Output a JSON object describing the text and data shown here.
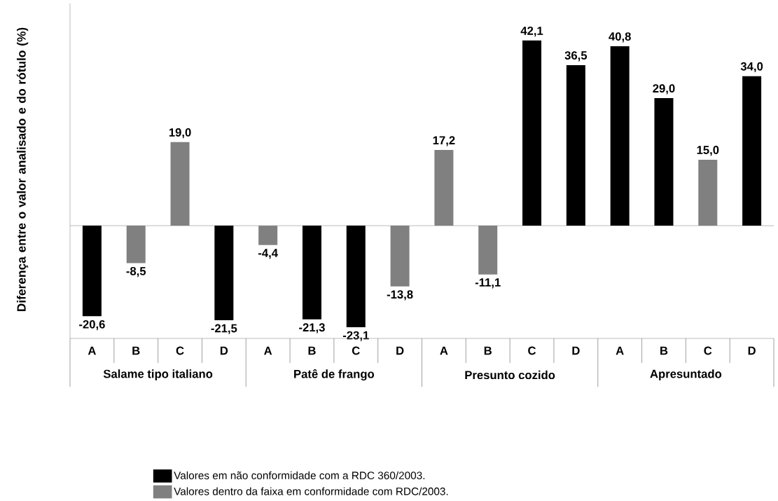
{
  "chart_data": {
    "type": "bar",
    "ylabel": "Diferença entre o valor analisado e do rótulo (%)",
    "categories": [
      "A",
      "B",
      "C",
      "D",
      "A",
      "B",
      "C",
      "D",
      "A",
      "B",
      "C",
      "D",
      "A",
      "B",
      "C",
      "D"
    ],
    "series": [
      {
        "name": "Valores em não conformidade com a RDC 360/2003.",
        "color": "#000000",
        "values": [
          -20.6,
          null,
          null,
          -21.5,
          null,
          -21.3,
          -23.1,
          null,
          null,
          null,
          42.1,
          36.5,
          40.8,
          29.0,
          null,
          34.0
        ],
        "value_labels": [
          "-20,6",
          null,
          null,
          "-21,5",
          null,
          "-21,3",
          "-23,1",
          null,
          null,
          null,
          "42,1",
          "36,5",
          "40,8",
          "29,0",
          null,
          "34,0"
        ]
      },
      {
        "name": "Valores dentro da faixa em conformidade com RDC/2003.",
        "color": "#808080",
        "values": [
          null,
          -8.5,
          19.0,
          null,
          -4.4,
          null,
          null,
          -13.8,
          17.2,
          -11.1,
          null,
          null,
          null,
          null,
          15.0,
          null
        ],
        "value_labels": [
          null,
          "-8,5",
          "19,0",
          null,
          "-4,4",
          null,
          null,
          "-13,8",
          "17,2",
          "-11,1",
          null,
          null,
          null,
          null,
          "15,0",
          null
        ]
      }
    ],
    "annotations": [
      "Salame tipo italiano",
      "Patê de frango",
      "Presunto cozido",
      "Apresuntado"
    ],
    "legend": "bottom"
  }
}
